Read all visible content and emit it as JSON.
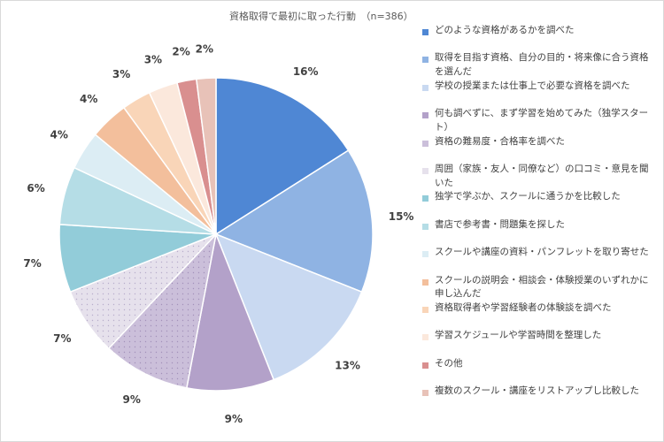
{
  "chart_data": {
    "type": "pie",
    "title": "資格取得で最初に取った行動　（n=386）",
    "slices": [
      {
        "label": "どのような資格があるかを調べた",
        "value": 16,
        "display": "16%",
        "color": "#4f87d4"
      },
      {
        "label": "取得を目指す資格、自分の目的・将来像に合う資格を選んだ",
        "value": 15,
        "display": "15%",
        "color": "#8fb3e3"
      },
      {
        "label": "学校の授業または仕事上で必要な資格を調べた",
        "value": 13,
        "display": "13%",
        "color": "#c9d9f1"
      },
      {
        "label": "何も調べずに、まず学習を始めてみた（独学スタート）",
        "value": 9,
        "display": "9%",
        "color": "#b3a1c9"
      },
      {
        "label": "資格の難易度・合格率を調べた",
        "value": 9,
        "display": "9%",
        "color": "#cbbfda"
      },
      {
        "label": "周囲（家族・友人・同僚など）の口コミ・意見を聞いた",
        "value": 7,
        "display": "7%",
        "color": "#e6e1ec"
      },
      {
        "label": "独学で学ぶか、スクールに通うかを比較した",
        "value": 7,
        "display": "7%",
        "color": "#92ccd9"
      },
      {
        "label": "書店で参考書・問題集を探した",
        "value": 6,
        "display": "6%",
        "color": "#b5dde6"
      },
      {
        "label": "スクールや講座の資料・パンフレットを取り寄せた",
        "value": 4,
        "display": "4%",
        "color": "#dcedf4"
      },
      {
        "label": "スクールの説明会・相談会・体験授業のいずれかに申し込んだ",
        "value": 4,
        "display": "4%",
        "color": "#f3bf9c"
      },
      {
        "label": "資格取得者や学習経験者の体験談を調べた",
        "value": 3,
        "display": "3%",
        "color": "#f9d5b8"
      },
      {
        "label": "学習スケジュールや学習時間を整理した",
        "value": 3,
        "display": "3%",
        "color": "#fbe8dc"
      },
      {
        "label": "その他",
        "value": 2,
        "display": "2%",
        "color": "#d98f8f"
      },
      {
        "label": "複数のスクール・講座をリストアップし比較した",
        "value": 2,
        "display": "2%",
        "color": "#e8c2b8"
      }
    ],
    "legend_position": "right",
    "start_angle": "12 o'clock",
    "direction": "clockwise"
  }
}
